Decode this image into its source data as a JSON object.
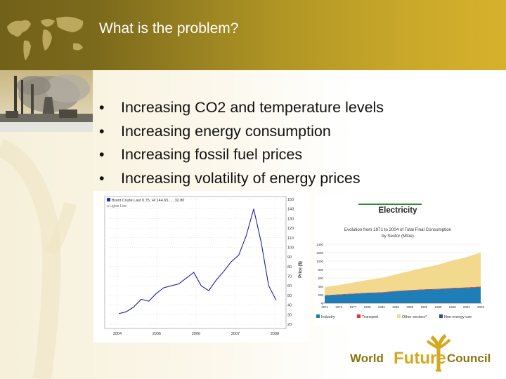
{
  "slide": {
    "title": "What is the problem?",
    "bullets": [
      "Increasing CO2 and temperature levels",
      "Increasing energy consumption",
      "Increasing fossil fuel prices",
      "Increasing volatility of energy prices"
    ],
    "bullet_glyph": "•"
  },
  "oil_chart": {
    "legend": "Brent Crude Last 0.75, Hi 144.65, ... 32.80",
    "sublegend": "o Lights Live",
    "y_axis_label": "Price ($)",
    "x_ticks": [
      "2004",
      "2005",
      "2006",
      "2007",
      "2008"
    ],
    "y_ticks": [
      "150",
      "140",
      "130",
      "120",
      "110",
      "100",
      "90",
      "80",
      "70",
      "60",
      "50",
      "40",
      "30",
      "20"
    ]
  },
  "electricity_chart": {
    "heading": "Electricity",
    "subtitle_line1": "Evolution from 1971 to 2004 of Total Final Consumption",
    "subtitle_line2": "by Sector (Mtoe)",
    "y_ticks": [
      "1400",
      "1200",
      "1000",
      "800",
      "600",
      "400",
      "200",
      "0"
    ],
    "x_ticks": [
      "1971",
      "1974",
      "1977",
      "1980",
      "1983",
      "1986",
      "1989",
      "1992",
      "1995",
      "1998",
      "2001",
      "2004"
    ],
    "legend": [
      {
        "label": "Industry",
        "color": "#1e7fb8"
      },
      {
        "label": "Transport",
        "color": "#e0382a"
      },
      {
        "label": "Other sectors*",
        "color": "#f2d98e"
      },
      {
        "label": "Non-energy use",
        "color": "#2c4f92"
      }
    ]
  },
  "logo": {
    "word1": "World",
    "word2": "Future",
    "word3": "Council"
  },
  "colors": {
    "header_dark": "#6a5a16",
    "header_light": "#d6b12c",
    "logo_olive": "#8a7510",
    "logo_gold": "#d4a91f"
  },
  "chart_data": [
    {
      "type": "line",
      "title": "Brent Crude",
      "ylabel": "Price ($)",
      "ylim": [
        20,
        150
      ],
      "series": [
        {
          "name": "Brent Crude",
          "x": [
            "2004-01",
            "2004-04",
            "2004-07",
            "2004-10",
            "2005-01",
            "2005-04",
            "2005-07",
            "2005-10",
            "2006-01",
            "2006-04",
            "2006-07",
            "2006-10",
            "2007-01",
            "2007-04",
            "2007-07",
            "2007-10",
            "2008-01",
            "2008-04",
            "2008-07",
            "2008-09",
            "2008-11",
            "2008-12"
          ],
          "values": [
            31,
            33,
            38,
            46,
            44,
            52,
            58,
            60,
            62,
            68,
            74,
            60,
            55,
            66,
            75,
            85,
            92,
            112,
            140,
            105,
            60,
            45
          ]
        }
      ]
    },
    {
      "type": "area",
      "title": "Evolution from 1971 to 2004 of Total Final Consumption by Sector (Mtoe)",
      "ylim": [
        0,
        1400
      ],
      "categories": [
        "1971",
        "1974",
        "1977",
        "1980",
        "1983",
        "1986",
        "1989",
        "1992",
        "1995",
        "1998",
        "2001",
        "2004"
      ],
      "series": [
        {
          "name": "Industry",
          "values": [
            180,
            200,
            220,
            240,
            250,
            280,
            300,
            320,
            330,
            350,
            360,
            380
          ]
        },
        {
          "name": "Transport",
          "values": [
            10,
            10,
            10,
            10,
            10,
            12,
            12,
            12,
            12,
            14,
            14,
            15
          ]
        },
        {
          "name": "Other sectors*",
          "values": [
            190,
            220,
            260,
            300,
            340,
            390,
            450,
            510,
            570,
            650,
            720,
            810
          ]
        },
        {
          "name": "Non-energy use",
          "values": [
            0,
            0,
            0,
            0,
            0,
            0,
            0,
            0,
            0,
            0,
            0,
            0
          ]
        }
      ]
    }
  ]
}
